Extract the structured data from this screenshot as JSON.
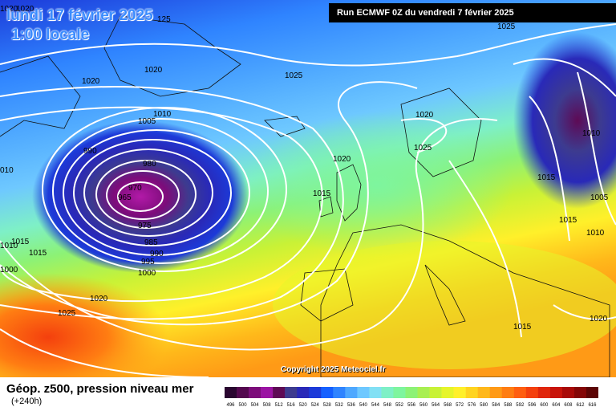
{
  "header": {
    "date_line": "lundi 17 février 2025",
    "time_line": "1:00 locale",
    "run_info": "Run ECMWF 0Z du vendredi 7 février 2025"
  },
  "copyright": "Copyright 2025 Meteociel.fr",
  "legend": {
    "title": "Géop. z500, pression niveau mer",
    "subtitle": "(+240h)",
    "scale_values": [
      "496",
      "500",
      "504",
      "508",
      "512",
      "516",
      "520",
      "524",
      "528",
      "532",
      "536",
      "540",
      "544",
      "548",
      "552",
      "556",
      "560",
      "564",
      "568",
      "572",
      "576",
      "580",
      "584",
      "588",
      "592",
      "596",
      "600",
      "604",
      "608",
      "612",
      "616"
    ],
    "scale_colors": [
      "#2a0630",
      "#54084f",
      "#7c0c7a",
      "#9b14a3",
      "#5e0a55",
      "#3d3b8f",
      "#2929b8",
      "#1c3ad9",
      "#1560ff",
      "#2f84ff",
      "#4ea8ff",
      "#6ec8ff",
      "#82e0f4",
      "#7ef0c6",
      "#7ef59e",
      "#8cf276",
      "#a8ef52",
      "#c8f236",
      "#e6f52a",
      "#fff02a",
      "#ffd420",
      "#ffb81a",
      "#ff9a16",
      "#ff7d12",
      "#ff5e10",
      "#f4400e",
      "#e0260c",
      "#c8140a",
      "#a80a08",
      "#840606",
      "#5c0404"
    ]
  },
  "isobars": [
    {
      "label": "1020"
    },
    {
      "label": "1020"
    },
    {
      "label": "1020"
    },
    {
      "label": "1025"
    },
    {
      "label": "1025"
    },
    {
      "label": "1010"
    },
    {
      "label": "1005"
    },
    {
      "label": "990"
    },
    {
      "label": "980"
    },
    {
      "label": "970"
    },
    {
      "label": "965"
    },
    {
      "label": "975"
    },
    {
      "label": "985"
    },
    {
      "label": "990"
    },
    {
      "label": "995"
    },
    {
      "label": "1000"
    },
    {
      "label": "1020"
    },
    {
      "label": "1015"
    },
    {
      "label": "1020"
    },
    {
      "label": "1025"
    },
    {
      "label": "1020"
    },
    {
      "label": "1015"
    },
    {
      "label": "1015"
    },
    {
      "label": "1010"
    },
    {
      "label": "1005"
    },
    {
      "label": "1015"
    },
    {
      "label": "1010"
    },
    {
      "label": "1015"
    },
    {
      "label": "1020"
    },
    {
      "label": "1025"
    },
    {
      "label": "1020"
    },
    {
      "label": "010"
    },
    {
      "label": "1010"
    },
    {
      "label": "1015"
    },
    {
      "label": "1000"
    },
    {
      "label": "125"
    }
  ]
}
